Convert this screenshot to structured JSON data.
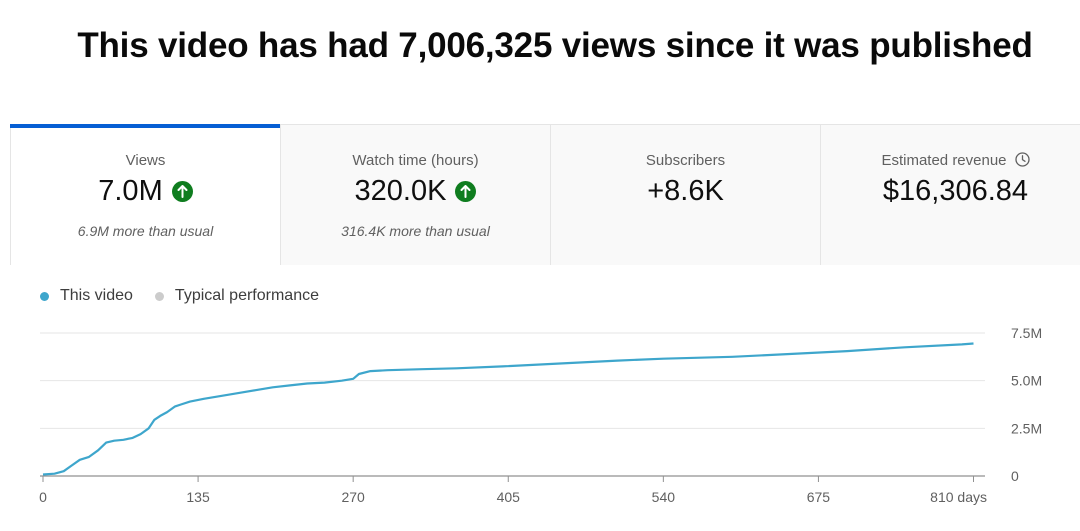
{
  "headline": "This video has had 7,006,325 views since it was published",
  "tabs": [
    {
      "label": "Views",
      "value": "7.0M",
      "subtext": "6.9M more than usual",
      "trend": "up",
      "active": true
    },
    {
      "label": "Watch time (hours)",
      "value": "320.0K",
      "subtext": "316.4K more than usual",
      "trend": "up",
      "active": false
    },
    {
      "label": "Subscribers",
      "value": "+8.6K",
      "subtext": "",
      "trend": "none",
      "active": false
    },
    {
      "label": "Estimated revenue",
      "value": "$16,306.84",
      "subtext": "",
      "trend": "none",
      "icon": "clock-icon",
      "active": false
    }
  ],
  "colors": {
    "accent": "#065fd4",
    "series": "#3ea6cc",
    "typical": "#cccccc",
    "trend_up": "#0f7d1f"
  },
  "legend": [
    {
      "label": "This video",
      "color": "#3ea6cc"
    },
    {
      "label": "Typical performance",
      "color": "#cccccc"
    }
  ],
  "chart_data": {
    "type": "line",
    "x_ticks": [
      "0",
      "135",
      "270",
      "405",
      "540",
      "675",
      "810 days"
    ],
    "y_ticks": [
      "0",
      "2.5M",
      "5.0M",
      "7.5M"
    ],
    "xlim": [
      0,
      820
    ],
    "ylim": [
      0,
      7500000
    ],
    "grid": true,
    "legend_position": "top-left",
    "series": [
      {
        "name": "This video",
        "color": "#3ea6cc",
        "x": [
          0,
          10,
          18,
          25,
          32,
          40,
          48,
          55,
          62,
          70,
          78,
          85,
          92,
          97,
          102,
          108,
          115,
          120,
          128,
          140,
          155,
          170,
          185,
          200,
          215,
          230,
          245,
          260,
          270,
          275,
          285,
          300,
          330,
          360,
          400,
          450,
          500,
          540,
          600,
          650,
          700,
          750,
          800,
          810
        ],
        "y": [
          80000,
          120000,
          250000,
          550000,
          850000,
          1000000,
          1350000,
          1750000,
          1850000,
          1900000,
          2000000,
          2200000,
          2500000,
          2950000,
          3150000,
          3350000,
          3650000,
          3750000,
          3900000,
          4050000,
          4200000,
          4350000,
          4500000,
          4650000,
          4750000,
          4850000,
          4900000,
          5000000,
          5100000,
          5350000,
          5500000,
          5550000,
          5600000,
          5650000,
          5750000,
          5900000,
          6050000,
          6150000,
          6250000,
          6400000,
          6550000,
          6750000,
          6900000,
          6950000
        ]
      }
    ]
  }
}
